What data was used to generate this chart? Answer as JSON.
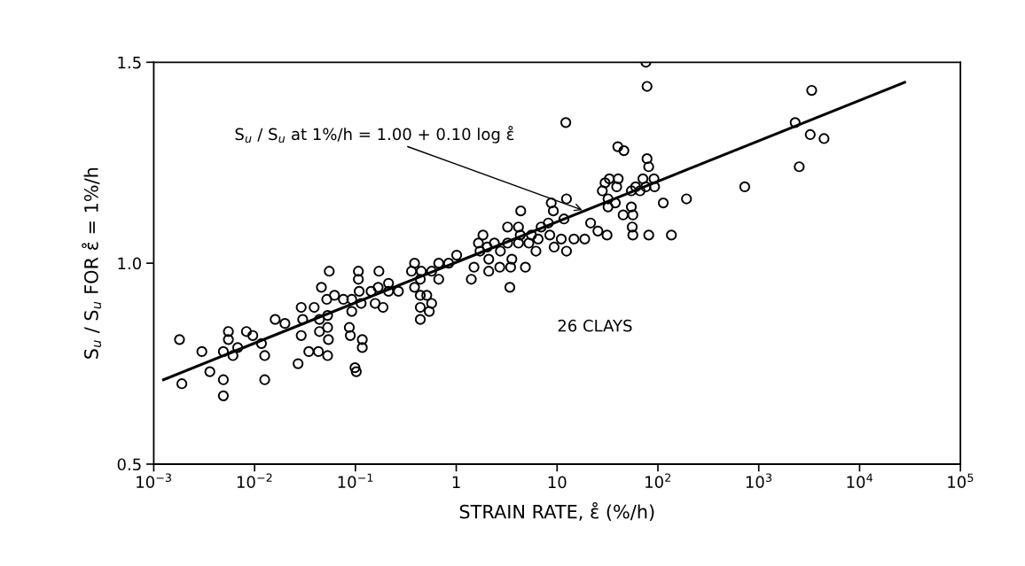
{
  "chart_data": {
    "type": "scatter",
    "xlabel": "STRAIN RATE, ε̊ (%/h)",
    "ylabel": "S$_{u}$ / S$_{u}$ FOR ε̊ = 1%/h",
    "log": "x",
    "grid": false,
    "legend": false,
    "xlim": [
      0.001,
      100000
    ],
    "xticks": [
      {
        "value": 0.001,
        "label": "10$^{−3}$"
      },
      {
        "value": 0.01,
        "label": "10$^{−2}$"
      },
      {
        "value": 0.1,
        "label": "10$^{−1}$"
      },
      {
        "value": 1,
        "label": "1"
      },
      {
        "value": 10,
        "label": "10"
      },
      {
        "value": 100,
        "label": "10$^{2}$"
      },
      {
        "value": 1000,
        "label": "10$^{3}$"
      },
      {
        "value": 10000,
        "label": "10$^{4}$"
      },
      {
        "value": 100000,
        "label": "10$^{5}$"
      }
    ],
    "ylim": [
      0.5,
      1.5
    ],
    "yticks": [
      {
        "value": 0.5,
        "label": "0.5"
      },
      {
        "value": 1.0,
        "label": "1.0"
      },
      {
        "value": 1.5,
        "label": "1.5"
      }
    ],
    "annotations": [
      {
        "text": "S$_{u}$ / S$_{u}$ at 1%/h = 1.00 + 0.10 log ε̊",
        "x": 18.8,
        "y": 1.13
      },
      "26 CLAYS"
    ],
    "series": [
      {
        "marker": "circle",
        "color": "#000000",
        "x": [
          0.0018,
          0.0019,
          0.003,
          0.0036,
          0.0049,
          0.0049,
          0.0049,
          0.0055,
          0.0055,
          0.0061,
          0.0068,
          0.0083,
          0.0096,
          0.0117,
          0.0126,
          0.0126,
          0.016,
          0.02,
          0.027,
          0.029,
          0.03,
          0.029,
          0.0345,
          0.039,
          0.043,
          0.044,
          0.044,
          0.046,
          0.052,
          0.053,
          0.053,
          0.054,
          0.053,
          0.055,
          0.062,
          0.076,
          0.092,
          0.092,
          0.087,
          0.089,
          0.099,
          0.102,
          0.107,
          0.107,
          0.109,
          0.114,
          0.117,
          0.117,
          0.143,
          0.157,
          0.168,
          0.171,
          0.188,
          0.213,
          0.213,
          0.267,
          0.36,
          0.386,
          0.386,
          0.44,
          0.44,
          0.44,
          0.44,
          0.45,
          0.51,
          0.54,
          0.57,
          0.57,
          0.67,
          0.67,
          0.84,
          1.01,
          1.41,
          1.5,
          1.66,
          1.72,
          1.84,
          2.03,
          2.1,
          2.1,
          2.39,
          2.74,
          2.7,
          3.23,
          3.23,
          3.46,
          3.56,
          3.4,
          4.14,
          4.14,
          4.31,
          4.36,
          4.85,
          5.25,
          5.57,
          6.17,
          6.49,
          6.95,
          8.18,
          8.47,
          8.75,
          9.18,
          9.35,
          11.0,
          11.7,
          12.4,
          12.4,
          14.7,
          18.8,
          21.5,
          25.4,
          28.1,
          29.9,
          31.3,
          32.0,
          32.0,
          33.0,
          37.8,
          39.0,
          40.4,
          45.2,
          54.5,
          54.5,
          56.4,
          56.4,
          55.6,
          60.1,
          66.5,
          71.0,
          75.9,
          81.1,
          91.4,
          92.7,
          113,
          136,
          192,
          12.2,
          40,
          46,
          76,
          78,
          78,
          81,
          726,
          2296,
          3350,
          3240,
          4440,
          2520
        ],
        "values": [
          0.81,
          0.7,
          0.78,
          0.73,
          0.78,
          0.71,
          0.67,
          0.83,
          0.81,
          0.77,
          0.79,
          0.83,
          0.82,
          0.8,
          0.77,
          0.71,
          0.86,
          0.85,
          0.75,
          0.89,
          0.86,
          0.82,
          0.78,
          0.89,
          0.78,
          0.86,
          0.83,
          0.94,
          0.91,
          0.87,
          0.84,
          0.81,
          0.77,
          0.98,
          0.92,
          0.91,
          0.91,
          0.88,
          0.84,
          0.82,
          0.74,
          0.73,
          0.98,
          0.96,
          0.93,
          0.9,
          0.81,
          0.79,
          0.93,
          0.9,
          0.94,
          0.98,
          0.89,
          0.95,
          0.93,
          0.93,
          0.98,
          1.0,
          0.94,
          0.96,
          0.92,
          0.89,
          0.86,
          0.98,
          0.92,
          0.88,
          0.98,
          0.9,
          1.0,
          0.96,
          1.0,
          1.02,
          0.96,
          0.99,
          1.05,
          1.03,
          1.07,
          1.04,
          1.01,
          0.98,
          1.05,
          1.03,
          0.99,
          1.05,
          1.09,
          0.99,
          1.01,
          0.94,
          1.09,
          1.05,
          1.07,
          1.13,
          0.99,
          1.05,
          1.07,
          1.03,
          1.06,
          1.09,
          1.1,
          1.07,
          1.15,
          1.13,
          1.04,
          1.06,
          1.11,
          1.03,
          1.16,
          1.06,
          1.06,
          1.1,
          1.08,
          1.18,
          1.2,
          1.07,
          1.16,
          1.14,
          1.21,
          1.15,
          1.19,
          1.21,
          1.12,
          1.14,
          1.18,
          1.12,
          1.07,
          1.09,
          1.19,
          1.18,
          1.21,
          1.19,
          1.07,
          1.21,
          1.19,
          1.15,
          1.07,
          1.16,
          1.35,
          1.29,
          1.28,
          1.5,
          1.44,
          1.26,
          1.24,
          1.19,
          1.35,
          1.43,
          1.32,
          1.31,
          1.24
        ]
      },
      {
        "type": "line",
        "color": "#000000",
        "x": [
          0.00125,
          28000
        ],
        "values": [
          0.71,
          1.45
        ]
      }
    ]
  }
}
